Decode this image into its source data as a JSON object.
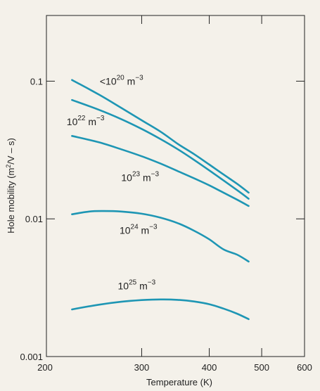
{
  "chart_data": {
    "type": "line",
    "xlabel": "Temperature (K)",
    "ylabel_parts": [
      "Hole mobility (m",
      "2",
      "/V – s)"
    ],
    "x_scale": "log",
    "y_scale": "log",
    "xlim": [
      200,
      600
    ],
    "ylim": [
      0.001,
      0.3
    ],
    "x_ticks": [
      {
        "value": 200,
        "label": "200"
      },
      {
        "value": 300,
        "label": "300"
      },
      {
        "value": 400,
        "label": "400"
      },
      {
        "value": 500,
        "label": "500"
      },
      {
        "value": 600,
        "label": "600"
      }
    ],
    "y_ticks": [
      {
        "value": 0.001,
        "label": "0.001"
      },
      {
        "value": 0.01,
        "label": "0.01"
      },
      {
        "value": 0.1,
        "label": "0.1"
      }
    ],
    "grid": false,
    "line_color": "#1e96b4",
    "series": [
      {
        "name": "<10^20 m^-3",
        "label": {
          "prefix": "<10",
          "exp": "20",
          "unit": " m",
          "unit_exp": "−3"
        },
        "x": [
          223,
          250,
          275,
          300,
          325,
          350,
          375,
          400,
          425,
          450,
          473
        ],
        "y": [
          0.102,
          0.08,
          0.064,
          0.052,
          0.043,
          0.035,
          0.0295,
          0.0248,
          0.021,
          0.018,
          0.0155
        ]
      },
      {
        "name": "10^22 m^-3",
        "label": {
          "prefix": "10",
          "exp": "22",
          "unit": " m",
          "unit_exp": "−3"
        },
        "x": [
          223,
          250,
          275,
          300,
          325,
          350,
          375,
          400,
          425,
          450,
          473
        ],
        "y": [
          0.073,
          0.062,
          0.053,
          0.045,
          0.038,
          0.032,
          0.0268,
          0.0225,
          0.019,
          0.0162,
          0.014
        ]
      },
      {
        "name": "10^23 m^-3",
        "label": {
          "prefix": "10",
          "exp": "23",
          "unit": " m",
          "unit_exp": "−3"
        },
        "x": [
          223,
          250,
          275,
          300,
          325,
          350,
          375,
          400,
          425,
          450,
          473
        ],
        "y": [
          0.04,
          0.036,
          0.032,
          0.0285,
          0.0252,
          0.0222,
          0.0197,
          0.0175,
          0.0155,
          0.0138,
          0.0124
        ]
      },
      {
        "name": "10^24 m^-3",
        "label": {
          "prefix": "10",
          "exp": "24",
          "unit": " m",
          "unit_exp": "−3"
        },
        "x": [
          223,
          240,
          255,
          275,
          300,
          325,
          350,
          375,
          400,
          425,
          450,
          473
        ],
        "y": [
          0.0108,
          0.0113,
          0.0114,
          0.0113,
          0.0109,
          0.0102,
          0.0093,
          0.0082,
          0.0071,
          0.006,
          0.0055,
          0.0049
        ]
      },
      {
        "name": "10^25 m^-3",
        "label": {
          "prefix": "10",
          "exp": "25",
          "unit": " m",
          "unit_exp": "−3"
        },
        "x": [
          223,
          250,
          275,
          300,
          325,
          350,
          375,
          400,
          425,
          450,
          473
        ],
        "y": [
          0.0022,
          0.00238,
          0.0025,
          0.00257,
          0.0026,
          0.00258,
          0.00251,
          0.0024,
          0.00223,
          0.00205,
          0.00187
        ]
      }
    ]
  }
}
